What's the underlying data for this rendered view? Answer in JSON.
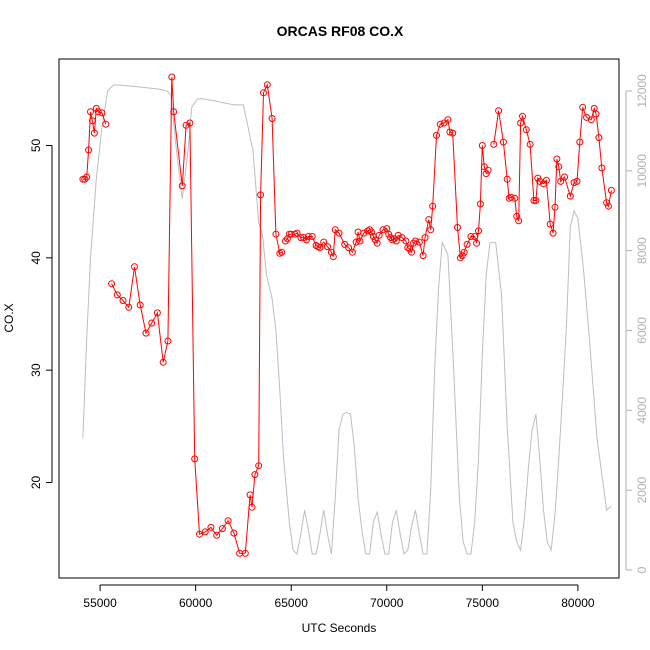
{
  "chart_data": {
    "type": "line",
    "title": "ORCAS RF08 CO.X",
    "xlabel": "UTC Seconds",
    "ylabel": "CO.X",
    "xlim": [
      52850,
      82150
    ],
    "ylim": [
      11.5,
      57.7
    ],
    "y2lim": [
      -200,
      12800
    ],
    "xticks": [
      55000,
      60000,
      65000,
      70000,
      75000,
      80000
    ],
    "yticks": [
      20,
      30,
      40,
      50
    ],
    "y2ticks": [
      0,
      2000,
      4000,
      6000,
      8000,
      10000,
      12000
    ],
    "grid": false,
    "legend": "none",
    "series": [
      {
        "axis": "left",
        "color": "#ff0000",
        "marker": "open-circle",
        "segments": [
          [
            [
              54100,
              47.0
            ],
            [
              54200,
              47.0
            ],
            [
              54300,
              47.2
            ],
            [
              54400,
              49.6
            ],
            [
              54500,
              53.0
            ],
            [
              54600,
              52.2
            ],
            [
              54700,
              51.1
            ],
            [
              54800,
              53.3
            ],
            [
              54900,
              53.0
            ],
            [
              55100,
              52.9
            ],
            [
              55300,
              51.9
            ]
          ],
          [
            [
              55600,
              37.7
            ],
            [
              55900,
              36.7
            ],
            [
              56200,
              36.2
            ],
            [
              56500,
              35.6
            ],
            [
              56800,
              39.2
            ],
            [
              57100,
              35.8
            ],
            [
              57400,
              33.3
            ],
            [
              57700,
              34.2
            ],
            [
              58000,
              35.1
            ],
            [
              58300,
              30.7
            ],
            [
              58550,
              32.6
            ],
            [
              58750,
              56.1
            ],
            [
              58850,
              53.0
            ],
            [
              59300,
              46.4
            ],
            [
              59500,
              51.8
            ],
            [
              59700,
              52.0
            ],
            [
              59950,
              22.1
            ],
            [
              60200,
              15.4
            ],
            [
              60500,
              15.6
            ],
            [
              60800,
              16.0
            ],
            [
              61100,
              15.3
            ],
            [
              61400,
              15.9
            ],
            [
              61700,
              16.6
            ],
            [
              62000,
              15.5
            ],
            [
              62300,
              13.7
            ],
            [
              62600,
              13.7
            ],
            [
              62850,
              18.9
            ],
            [
              62950,
              17.8
            ],
            [
              63100,
              20.7
            ],
            [
              63300,
              21.5
            ],
            [
              63400,
              45.6
            ],
            [
              63550,
              54.7
            ],
            [
              63750,
              55.4
            ],
            [
              64000,
              52.4
            ],
            [
              64200,
              42.1
            ],
            [
              64400,
              40.4
            ],
            [
              64500,
              40.5
            ]
          ],
          [
            [
              64700,
              41.5
            ],
            [
              64800,
              41.7
            ],
            [
              64900,
              42.1
            ],
            [
              65000,
              42.1
            ],
            [
              65200,
              42.1
            ],
            [
              65300,
              42.2
            ],
            [
              65500,
              41.8
            ],
            [
              65650,
              41.8
            ],
            [
              65800,
              41.6
            ],
            [
              65900,
              41.9
            ],
            [
              66100,
              41.9
            ],
            [
              66300,
              41.1
            ],
            [
              66400,
              41.0
            ],
            [
              66500,
              40.9
            ],
            [
              66700,
              41.4
            ],
            [
              66900,
              41.0
            ],
            [
              67100,
              40.5
            ],
            [
              67200,
              40.1
            ],
            [
              67300,
              42.5
            ],
            [
              67500,
              42.2
            ],
            [
              67800,
              41.2
            ],
            [
              68000,
              40.9
            ],
            [
              68200,
              40.5
            ],
            [
              68400,
              41.4
            ],
            [
              68500,
              42.3
            ],
            [
              68600,
              41.5
            ],
            [
              68800,
              42.2
            ],
            [
              69000,
              42.4
            ],
            [
              69100,
              42.5
            ],
            [
              69200,
              42.3
            ],
            [
              69300,
              41.9
            ],
            [
              69400,
              41.6
            ],
            [
              69500,
              41.3
            ],
            [
              69600,
              42.0
            ],
            [
              69800,
              42.5
            ],
            [
              70000,
              42.6
            ],
            [
              70100,
              42.1
            ],
            [
              70200,
              41.8
            ],
            [
              70300,
              41.6
            ],
            [
              70400,
              41.7
            ],
            [
              70500,
              41.5
            ],
            [
              70600,
              42.0
            ],
            [
              70800,
              41.8
            ],
            [
              71000,
              41.5
            ],
            [
              71100,
              40.9
            ],
            [
              71200,
              40.8
            ],
            [
              71300,
              40.5
            ],
            [
              71400,
              41.3
            ],
            [
              71500,
              41.5
            ],
            [
              71700,
              41.4
            ],
            [
              71900,
              40.2
            ],
            [
              72000,
              41.8
            ],
            [
              72200,
              43.4
            ],
            [
              72300,
              42.5
            ],
            [
              72400,
              44.6
            ],
            [
              72600,
              50.9
            ],
            [
              72800,
              51.9
            ],
            [
              73000,
              52.0
            ],
            [
              73200,
              52.3
            ],
            [
              73300,
              51.2
            ],
            [
              73450,
              51.1
            ],
            [
              73700,
              42.7
            ],
            [
              73850,
              40.0
            ],
            [
              73950,
              40.2
            ],
            [
              74050,
              40.5
            ],
            [
              74200,
              41.2
            ],
            [
              74400,
              41.9
            ],
            [
              74600,
              41.9
            ],
            [
              74700,
              41.3
            ],
            [
              74800,
              42.4
            ],
            [
              74900,
              44.8
            ],
            [
              75000,
              50.0
            ],
            [
              75100,
              48.1
            ],
            [
              75200,
              47.5
            ],
            [
              75300,
              47.8
            ]
          ],
          [
            [
              75600,
              50.1
            ],
            [
              75850,
              53.1
            ],
            [
              76100,
              50.3
            ],
            [
              76300,
              47.0
            ],
            [
              76400,
              45.3
            ],
            [
              76500,
              45.4
            ],
            [
              76700,
              45.3
            ],
            [
              76800,
              43.7
            ],
            [
              76900,
              43.3
            ],
            [
              77000,
              52.0
            ],
            [
              77100,
              52.6
            ],
            [
              77300,
              51.4
            ],
            [
              77500,
              50.1
            ],
            [
              77700,
              45.1
            ],
            [
              77800,
              45.1
            ],
            [
              77900,
              47.1
            ],
            [
              78000,
              46.8
            ],
            [
              78200,
              46.6
            ],
            [
              78350,
              46.9
            ],
            [
              78550,
              43.0
            ],
            [
              78700,
              42.2
            ],
            [
              78800,
              44.5
            ],
            [
              78900,
              48.8
            ],
            [
              79000,
              48.1
            ],
            [
              79100,
              46.8
            ],
            [
              79300,
              47.2
            ],
            [
              79600,
              45.5
            ],
            [
              79800,
              46.7
            ],
            [
              79950,
              46.8
            ],
            [
              80100,
              50.3
            ],
            [
              80250,
              53.4
            ],
            [
              80450,
              52.5
            ],
            [
              80700,
              52.3
            ],
            [
              80850,
              53.3
            ],
            [
              80950,
              52.8
            ],
            [
              81100,
              50.7
            ],
            [
              81250,
              48.0
            ],
            [
              81500,
              44.9
            ],
            [
              81600,
              44.6
            ],
            [
              81750,
              46.0
            ]
          ]
        ]
      },
      {
        "axis": "right",
        "color": "#bebebe",
        "marker": "none",
        "segments": [
          [
            [
              54100,
              3300
            ],
            [
              54300,
              5800
            ],
            [
              54500,
              7800
            ],
            [
              54800,
              9800
            ],
            [
              55100,
              11100
            ],
            [
              55400,
              12000
            ],
            [
              55700,
              12150
            ],
            [
              56000,
              12150
            ],
            [
              57000,
              12100
            ],
            [
              58000,
              12050
            ],
            [
              58500,
              12000
            ],
            [
              58700,
              11900
            ],
            [
              59000,
              10500
            ],
            [
              59300,
              9300
            ],
            [
              59600,
              10500
            ],
            [
              59800,
              11600
            ],
            [
              60100,
              11800
            ],
            [
              60400,
              11800
            ],
            [
              61000,
              11750
            ],
            [
              62000,
              11650
            ],
            [
              62500,
              11650
            ],
            [
              63000,
              10500
            ],
            [
              63300,
              8700
            ],
            [
              63500,
              8400
            ],
            [
              63700,
              7400
            ],
            [
              64000,
              6800
            ],
            [
              64200,
              6000
            ],
            [
              64400,
              4500
            ],
            [
              64600,
              2800
            ],
            [
              64900,
              1200
            ],
            [
              65100,
              500
            ],
            [
              65300,
              400
            ],
            [
              65500,
              900
            ],
            [
              65700,
              1500
            ],
            [
              65900,
              1000
            ],
            [
              66100,
              400
            ],
            [
              66300,
              400
            ],
            [
              66500,
              900
            ],
            [
              66700,
              1500
            ],
            [
              66900,
              900
            ],
            [
              67100,
              400
            ],
            [
              67300,
              1800
            ],
            [
              67500,
              3500
            ],
            [
              67700,
              3900
            ],
            [
              67900,
              3950
            ],
            [
              68100,
              3900
            ],
            [
              68300,
              3100
            ],
            [
              68500,
              1800
            ],
            [
              68700,
              1000
            ],
            [
              68900,
              400
            ],
            [
              69100,
              400
            ],
            [
              69300,
              1200
            ],
            [
              69500,
              1450
            ],
            [
              69700,
              900
            ],
            [
              69900,
              400
            ],
            [
              70100,
              400
            ],
            [
              70300,
              1200
            ],
            [
              70500,
              1500
            ],
            [
              70700,
              900
            ],
            [
              70900,
              400
            ],
            [
              71100,
              500
            ],
            [
              71300,
              1100
            ],
            [
              71500,
              1500
            ],
            [
              71700,
              900
            ],
            [
              71900,
              400
            ],
            [
              72100,
              400
            ],
            [
              72300,
              2000
            ],
            [
              72500,
              5000
            ],
            [
              72700,
              7000
            ],
            [
              72900,
              8200
            ],
            [
              73200,
              7900
            ],
            [
              73500,
              5000
            ],
            [
              73800,
              1800
            ],
            [
              74000,
              700
            ],
            [
              74200,
              400
            ],
            [
              74400,
              400
            ],
            [
              74600,
              1200
            ],
            [
              74800,
              2800
            ],
            [
              75000,
              5400
            ],
            [
              75200,
              7400
            ],
            [
              75400,
              8200
            ],
            [
              75700,
              8200
            ],
            [
              76000,
              6900
            ],
            [
              76300,
              3600
            ],
            [
              76600,
              1200
            ],
            [
              76800,
              700
            ],
            [
              77000,
              500
            ],
            [
              77200,
              1300
            ],
            [
              77400,
              2500
            ],
            [
              77600,
              3500
            ],
            [
              77800,
              3900
            ],
            [
              78000,
              2800
            ],
            [
              78200,
              1500
            ],
            [
              78400,
              700
            ],
            [
              78600,
              500
            ],
            [
              78800,
              1400
            ],
            [
              79000,
              2800
            ],
            [
              79200,
              4400
            ],
            [
              79400,
              6100
            ],
            [
              79600,
              8600
            ],
            [
              79800,
              9000
            ],
            [
              80000,
              8800
            ],
            [
              80300,
              7500
            ],
            [
              80600,
              5800
            ],
            [
              81000,
              3300
            ],
            [
              81500,
              1500
            ],
            [
              81750,
              1600
            ]
          ]
        ]
      }
    ]
  }
}
